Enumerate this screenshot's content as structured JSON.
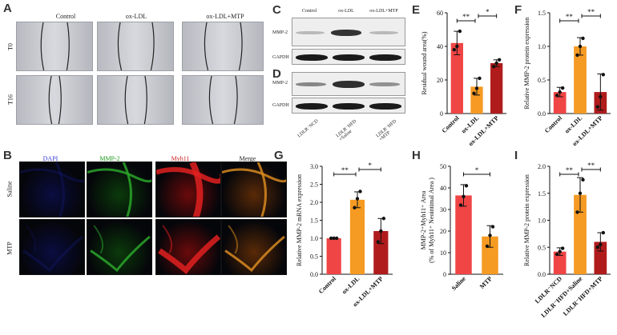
{
  "panel_letters": {
    "a": "A",
    "b": "B",
    "c": "C",
    "d": "D",
    "e": "E",
    "f": "F",
    "g": "G",
    "h": "H",
    "i": "I"
  },
  "wound_panel": {
    "columns": [
      "Control",
      "ox-LDL",
      "ox-LDL+MTP"
    ],
    "rows": [
      "T0",
      "T16"
    ]
  },
  "fluor_panel": {
    "columns": [
      "DAPI",
      "MMP-2",
      "Myh11",
      "Merge"
    ],
    "column_colors": [
      "#3b3bd6",
      "#1d9a1d",
      "#cc2020",
      "#222222"
    ],
    "rows": [
      "Saline",
      "MTP"
    ]
  },
  "blot_c": {
    "columns": [
      "Control",
      "ox-LDL",
      "ox-LDL+MTP"
    ],
    "rows": [
      "MMP-2",
      "GAPDH"
    ]
  },
  "blot_d": {
    "columns": [
      "LDLR⁻NCD",
      "LDLR⁻HFD\n+Saline",
      "LDLR⁻HFD\n+MTP"
    ],
    "rows": [
      "MMP-2",
      "GAPDH"
    ]
  },
  "chart_data": [
    {
      "id": "E",
      "type": "bar",
      "categories": [
        "Control",
        "ox-LDL",
        "ox-LDL+MTP"
      ],
      "values": [
        42,
        16,
        30
      ],
      "errors": [
        7,
        5,
        2
      ],
      "points": [
        [
          38,
          40,
          49
        ],
        [
          12,
          15,
          21
        ],
        [
          28,
          30,
          32
        ]
      ],
      "colors": [
        "#f04545",
        "#f59a22",
        "#b01c1c"
      ],
      "ylabel": "Residual wound area(%)",
      "ylim": [
        0,
        60
      ],
      "yticks": [
        0,
        20,
        40,
        60
      ],
      "sig": [
        {
          "a": 0,
          "b": 1,
          "label": "**"
        },
        {
          "a": 1,
          "b": 2,
          "label": "*"
        }
      ]
    },
    {
      "id": "F",
      "type": "bar",
      "categories": [
        "Control",
        "ox-LDL",
        "ox-LDL+MTP"
      ],
      "values": [
        0.32,
        1.0,
        0.32
      ],
      "errors": [
        0.07,
        0.13,
        0.27
      ],
      "points": [
        [
          0.27,
          0.32,
          0.38
        ],
        [
          0.87,
          1.0,
          1.12
        ],
        [
          0.1,
          0.25,
          0.58
        ]
      ],
      "colors": [
        "#f04545",
        "#f59a22",
        "#b01c1c"
      ],
      "ylabel": "Relative MMP-2 protein expression",
      "ylim": [
        0,
        1.5
      ],
      "yticks": [
        0.0,
        0.5,
        1.0,
        1.5
      ],
      "sig": [
        {
          "a": 0,
          "b": 1,
          "label": "**"
        },
        {
          "a": 1,
          "b": 2,
          "label": "**"
        }
      ]
    },
    {
      "id": "G",
      "type": "bar",
      "categories": [
        "Control",
        "ox-LDL",
        "ox-LDL+MTP"
      ],
      "values": [
        1.0,
        2.07,
        1.2
      ],
      "errors": [
        0.0,
        0.22,
        0.35
      ],
      "points": [
        [
          1.0,
          1.0,
          1.0
        ],
        [
          1.85,
          2.1,
          2.3
        ],
        [
          0.9,
          1.2,
          1.55
        ]
      ],
      "colors": [
        "#f04545",
        "#f59a22",
        "#b01c1c"
      ],
      "ylabel": "Relative MMP-2 mRNA expression",
      "ylim": [
        0,
        3.0
      ],
      "yticks": [
        0.0,
        0.5,
        1.0,
        1.5,
        2.0,
        2.5,
        3.0
      ],
      "sig": [
        {
          "a": 0,
          "b": 1,
          "label": "**"
        },
        {
          "a": 1,
          "b": 2,
          "label": "*"
        }
      ]
    },
    {
      "id": "H",
      "type": "bar",
      "categories": [
        "Saline",
        "MTP"
      ],
      "values": [
        36.5,
        17.5
      ],
      "errors": [
        5,
        5
      ],
      "points": [
        [
          32,
          36,
          41
        ],
        [
          13,
          18,
          22
        ]
      ],
      "colors": [
        "#f04545",
        "#f59a22"
      ],
      "ylabel": "MMP-2⁺Myh11⁺ Area\n(% of Myh11⁺ Neointimal Area )",
      "ylim": [
        0,
        50
      ],
      "yticks": [
        0,
        10,
        20,
        30,
        40,
        50
      ],
      "sig": [
        {
          "a": 0,
          "b": 1,
          "label": "*"
        }
      ]
    },
    {
      "id": "I",
      "type": "bar",
      "categories": [
        "LDLR⁻NCD",
        "LDLR⁻HFD+Saline",
        "LDLR⁻HFD+MTP"
      ],
      "values": [
        0.42,
        1.47,
        0.6
      ],
      "errors": [
        0.07,
        0.32,
        0.17
      ],
      "points": [
        [
          0.37,
          0.42,
          0.48
        ],
        [
          1.15,
          1.5,
          1.75
        ],
        [
          0.5,
          0.55,
          0.77
        ]
      ],
      "colors": [
        "#f04545",
        "#f59a22",
        "#b01c1c"
      ],
      "ylabel": "Relative MMP-2 protein expression",
      "ylim": [
        0,
        2.0
      ],
      "yticks": [
        0.0,
        0.5,
        1.0,
        1.5,
        2.0
      ],
      "sig": [
        {
          "a": 0,
          "b": 1,
          "label": "**"
        },
        {
          "a": 1,
          "b": 2,
          "label": "**"
        }
      ]
    }
  ]
}
